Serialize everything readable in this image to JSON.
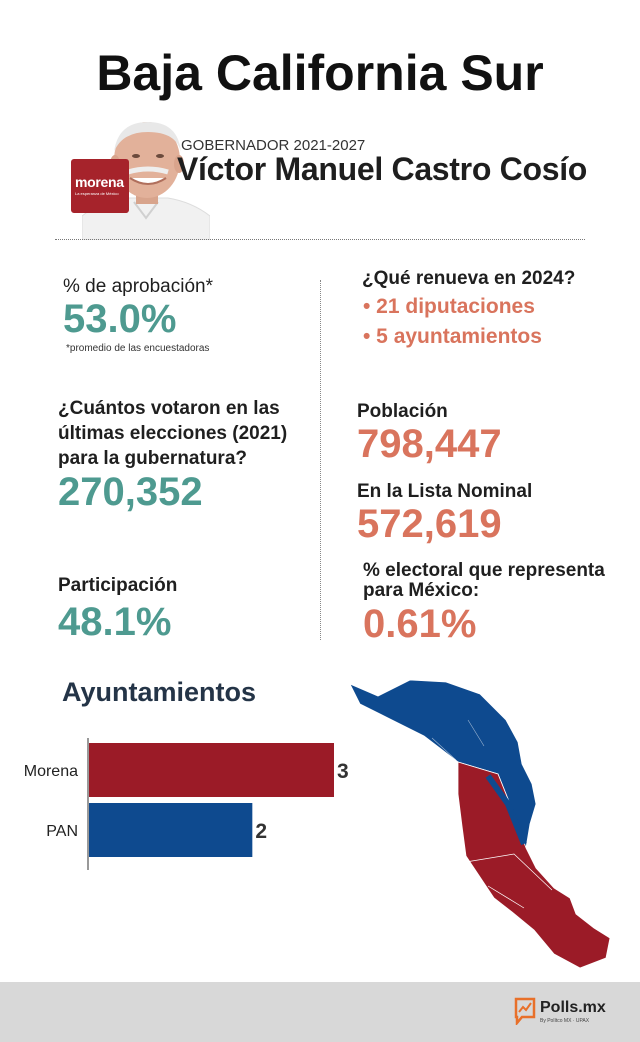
{
  "header": {
    "title": "Baja California Sur",
    "role": "GOBERNADOR 2021-2027",
    "governor_name": "Víctor Manuel Castro Cosío",
    "party_logo_text": "morena",
    "party_logo_tagline": "La esperanza de México"
  },
  "stats_left": {
    "approval_label": "% de aprobación*",
    "approval_value": "53.0%",
    "approval_note": "*promedio de las encuestadoras",
    "voters_label_1": "¿Cuántos votaron en las",
    "voters_label_2": "últimas elecciones (2021)",
    "voters_label_3": "para la gubernatura?",
    "voters_value": "270,352",
    "participation_label": "Participación",
    "participation_value": "48.1%"
  },
  "stats_right": {
    "renews_label": "¿Qué renueva en 2024?",
    "renews_items": [
      "• 21 diputaciones",
      "• 5 ayuntamientos"
    ],
    "population_label": "Población",
    "population_value": "798,447",
    "nominal_label": "En la Lista Nominal",
    "nominal_value": "572,619",
    "electoral_label_1": "% electoral que representa",
    "electoral_label_2": "para México:",
    "electoral_value": "0.61%"
  },
  "colors": {
    "morena": "#9b1b27",
    "pan": "#0e4a8f",
    "teal": "#4e9a90",
    "orange": "#d9745d"
  },
  "chart_data": {
    "type": "bar",
    "orientation": "horizontal",
    "title": "Ayuntamientos",
    "categories": [
      "Morena",
      "PAN"
    ],
    "values": [
      3,
      2
    ],
    "colors": [
      "#9b1b27",
      "#0e4a8f"
    ],
    "xlim": [
      0,
      3
    ],
    "grid": false,
    "legend": "none"
  },
  "map": {
    "icon": "baja-california-sur-map",
    "colors": [
      "#0e4a8f",
      "#9b1b27"
    ]
  },
  "footer": {
    "brand": "Polls.mx",
    "brand_sub": "By Polítco MX · UPAX",
    "icon": "polls-logo-icon"
  }
}
